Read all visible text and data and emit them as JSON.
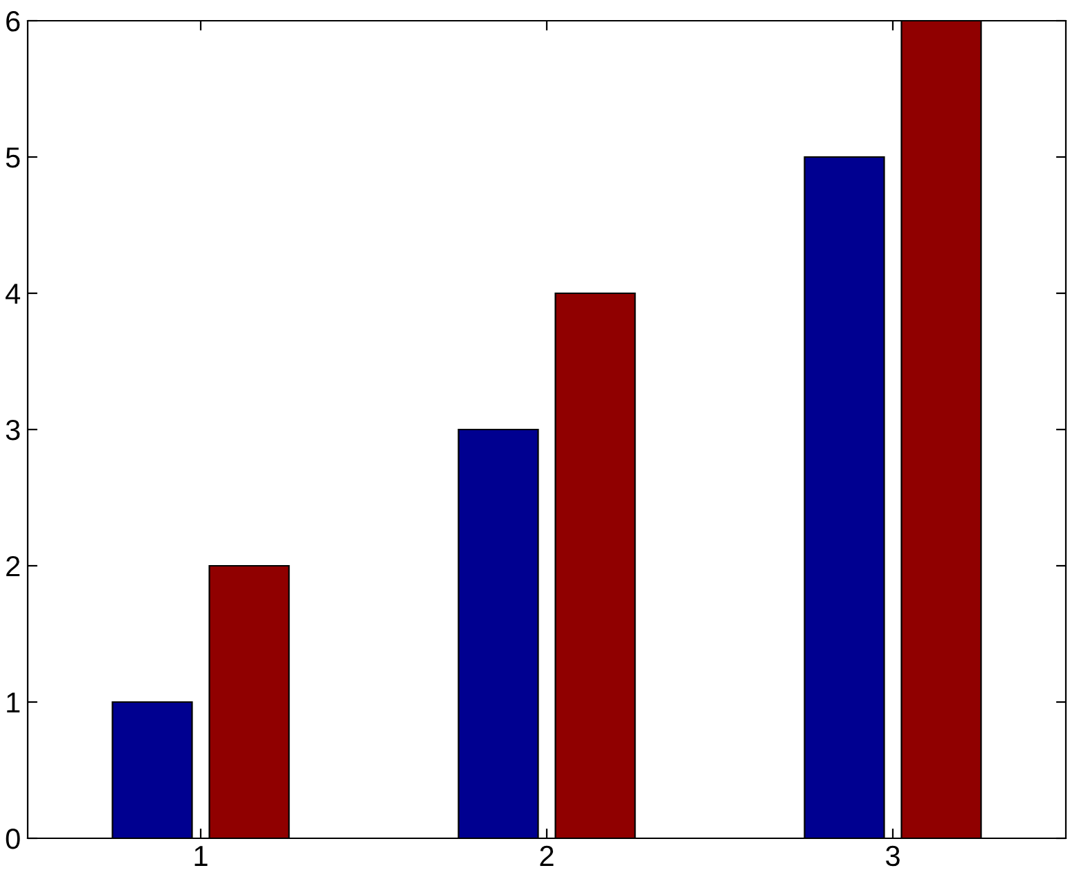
{
  "chart_data": {
    "type": "bar",
    "categories": [
      "1",
      "2",
      "3"
    ],
    "series": [
      {
        "color": "#000090",
        "values": [
          1,
          3,
          5
        ]
      },
      {
        "color": "#900000",
        "values": [
          2,
          4,
          6
        ]
      }
    ],
    "ylim": [
      0,
      6
    ],
    "yticks": [
      0,
      1,
      2,
      3,
      4,
      5,
      6
    ],
    "grid": false,
    "legend": false
  }
}
